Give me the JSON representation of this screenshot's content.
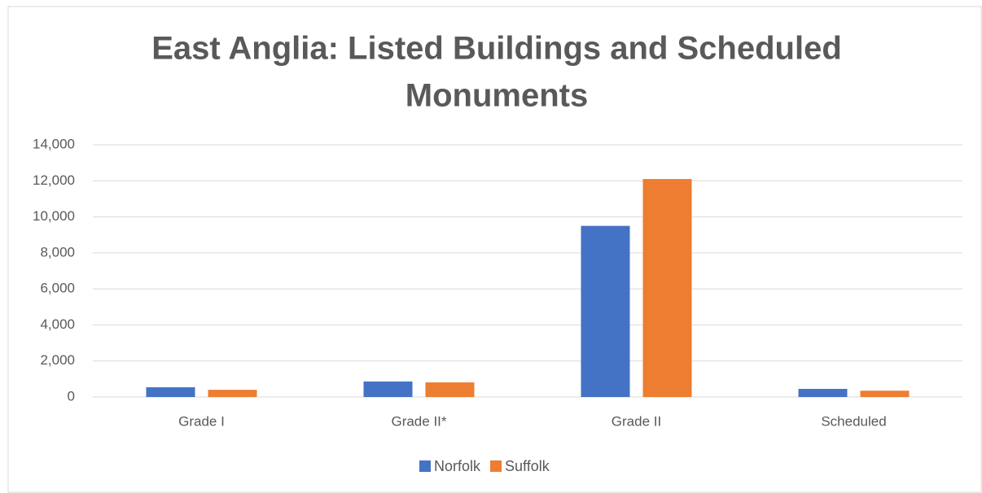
{
  "chart_data": {
    "type": "bar",
    "title_lines": [
      "East Anglia: Listed Buildings and Scheduled",
      "Monuments"
    ],
    "categories": [
      "Grade I",
      "Grade II*",
      "Grade II",
      "Scheduled"
    ],
    "series": [
      {
        "name": "Norfolk",
        "color": "#4472c4",
        "values": [
          540,
          860,
          9500,
          450
        ]
      },
      {
        "name": "Suffolk",
        "color": "#ed7d31",
        "values": [
          400,
          810,
          12100,
          350
        ]
      }
    ],
    "ylim": [
      0,
      14000
    ],
    "yticks": [
      0,
      {
        "value": 2000,
        "label": "2,000"
      },
      {
        "value": 4000,
        "label": "4,000"
      },
      {
        "value": 6000,
        "label": "6,000"
      },
      {
        "value": 8000,
        "label": "8,000"
      },
      {
        "value": 10000,
        "label": "10,000"
      },
      {
        "value": 12000,
        "label": "12,000"
      },
      {
        "value": 14000,
        "label": "14,000"
      }
    ],
    "grid": true,
    "legend": "bottom"
  }
}
